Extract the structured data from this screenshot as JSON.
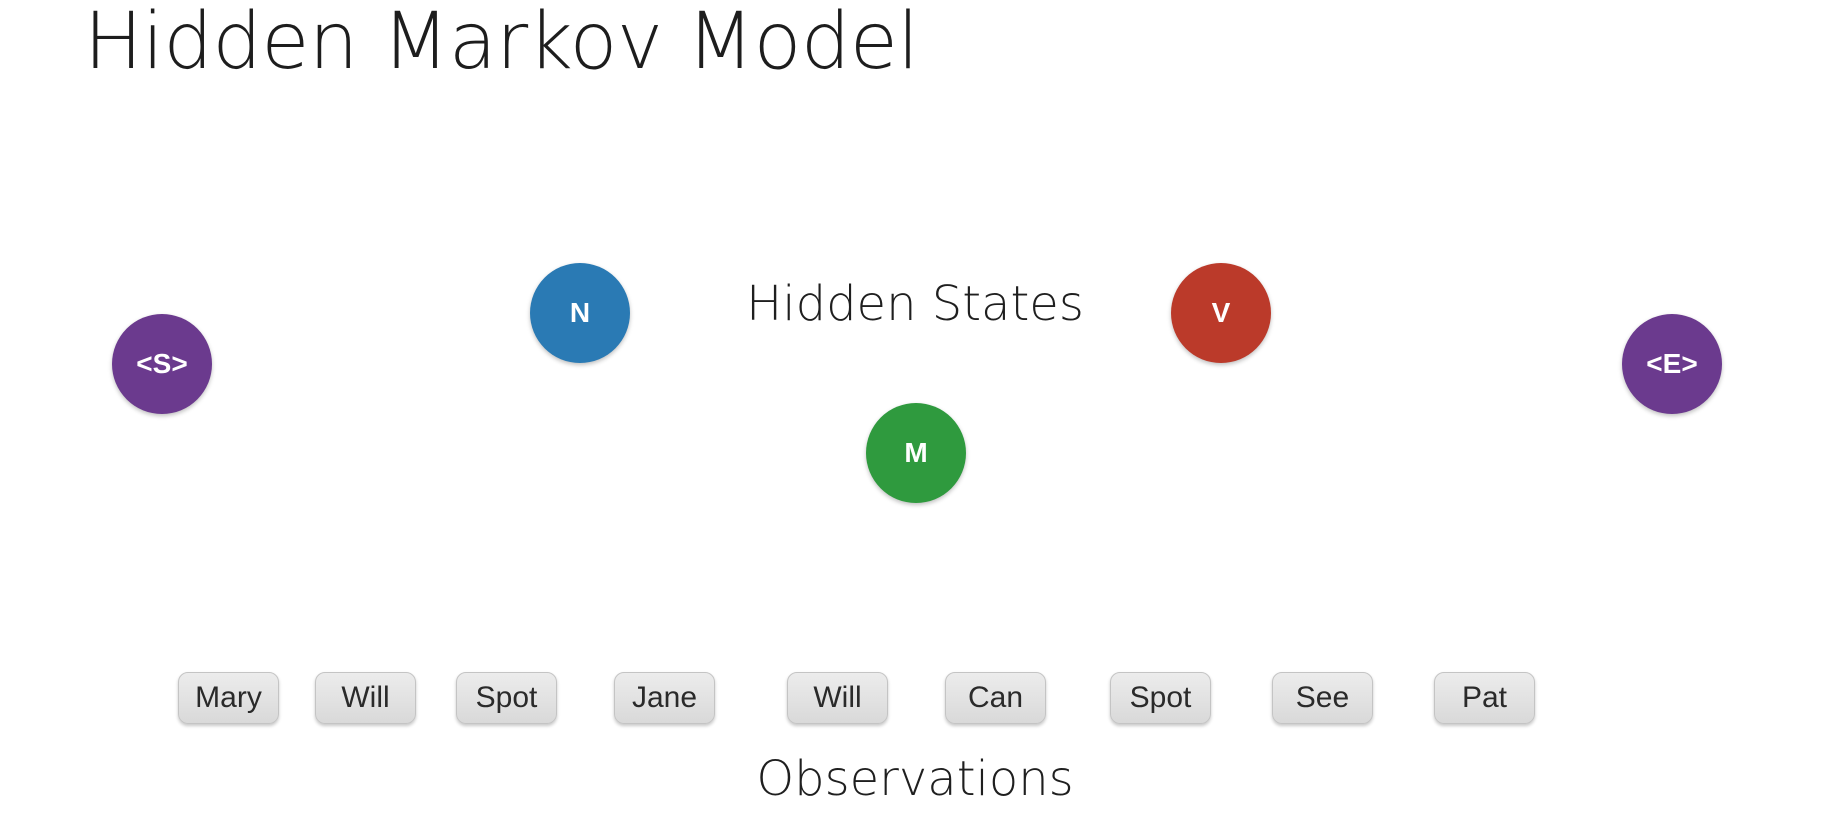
{
  "slide": {
    "title": "Hidden Markov Model",
    "hidden_states_label": "Hidden States",
    "observations_label": "Observations"
  },
  "states": [
    {
      "label": "<S>",
      "color": "#6b3a8e"
    },
    {
      "label": "N",
      "color": "#2a7ab4"
    },
    {
      "label": "M",
      "color": "#2f9a3e"
    },
    {
      "label": "V",
      "color": "#bb3a2a"
    },
    {
      "label": "<E>",
      "color": "#6b3a8e"
    }
  ],
  "observations": [
    "Mary",
    "Will",
    "Spot",
    "Jane",
    "Will",
    "Can",
    "Spot",
    "See",
    "Pat"
  ]
}
